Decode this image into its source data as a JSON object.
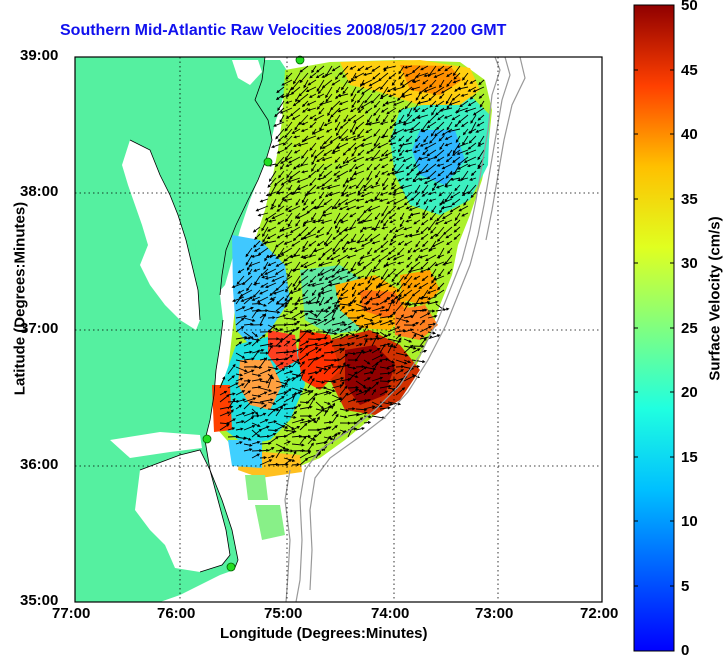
{
  "title": "Southern Mid-Atlantic Raw Velocities 2008/05/17 2200 GMT",
  "x_axis": {
    "label": "Longitude (Degrees:Minutes)",
    "ticks": [
      "77:00",
      "76:00",
      "75:00",
      "74:00",
      "73:00",
      "72:00"
    ],
    "range": [
      -77,
      -72
    ]
  },
  "y_axis": {
    "label": "Latitude (Degrees:Minutes)",
    "ticks": [
      "35:00",
      "36:00",
      "37:00",
      "38:00",
      "39:00"
    ],
    "range": [
      35,
      39
    ]
  },
  "colorbar": {
    "label": "Surface Velocity (cm/s)",
    "ticks": [
      "0",
      "5",
      "10",
      "15",
      "20",
      "25",
      "30",
      "35",
      "40",
      "45",
      "50"
    ],
    "range": [
      0,
      50
    ],
    "colormap": "jet"
  },
  "colors": {
    "land": "#55f0a0",
    "water": "#ffffff",
    "title": "#1111ee",
    "station": "#22dd22",
    "grid": "#000000",
    "bathymetry": "#999999",
    "vector": "#000000"
  },
  "stations": [
    "station-cape-may",
    "station-assateague",
    "station-wallops",
    "station-duck",
    "station-hatteras"
  ],
  "grid_lines": "dotted"
}
